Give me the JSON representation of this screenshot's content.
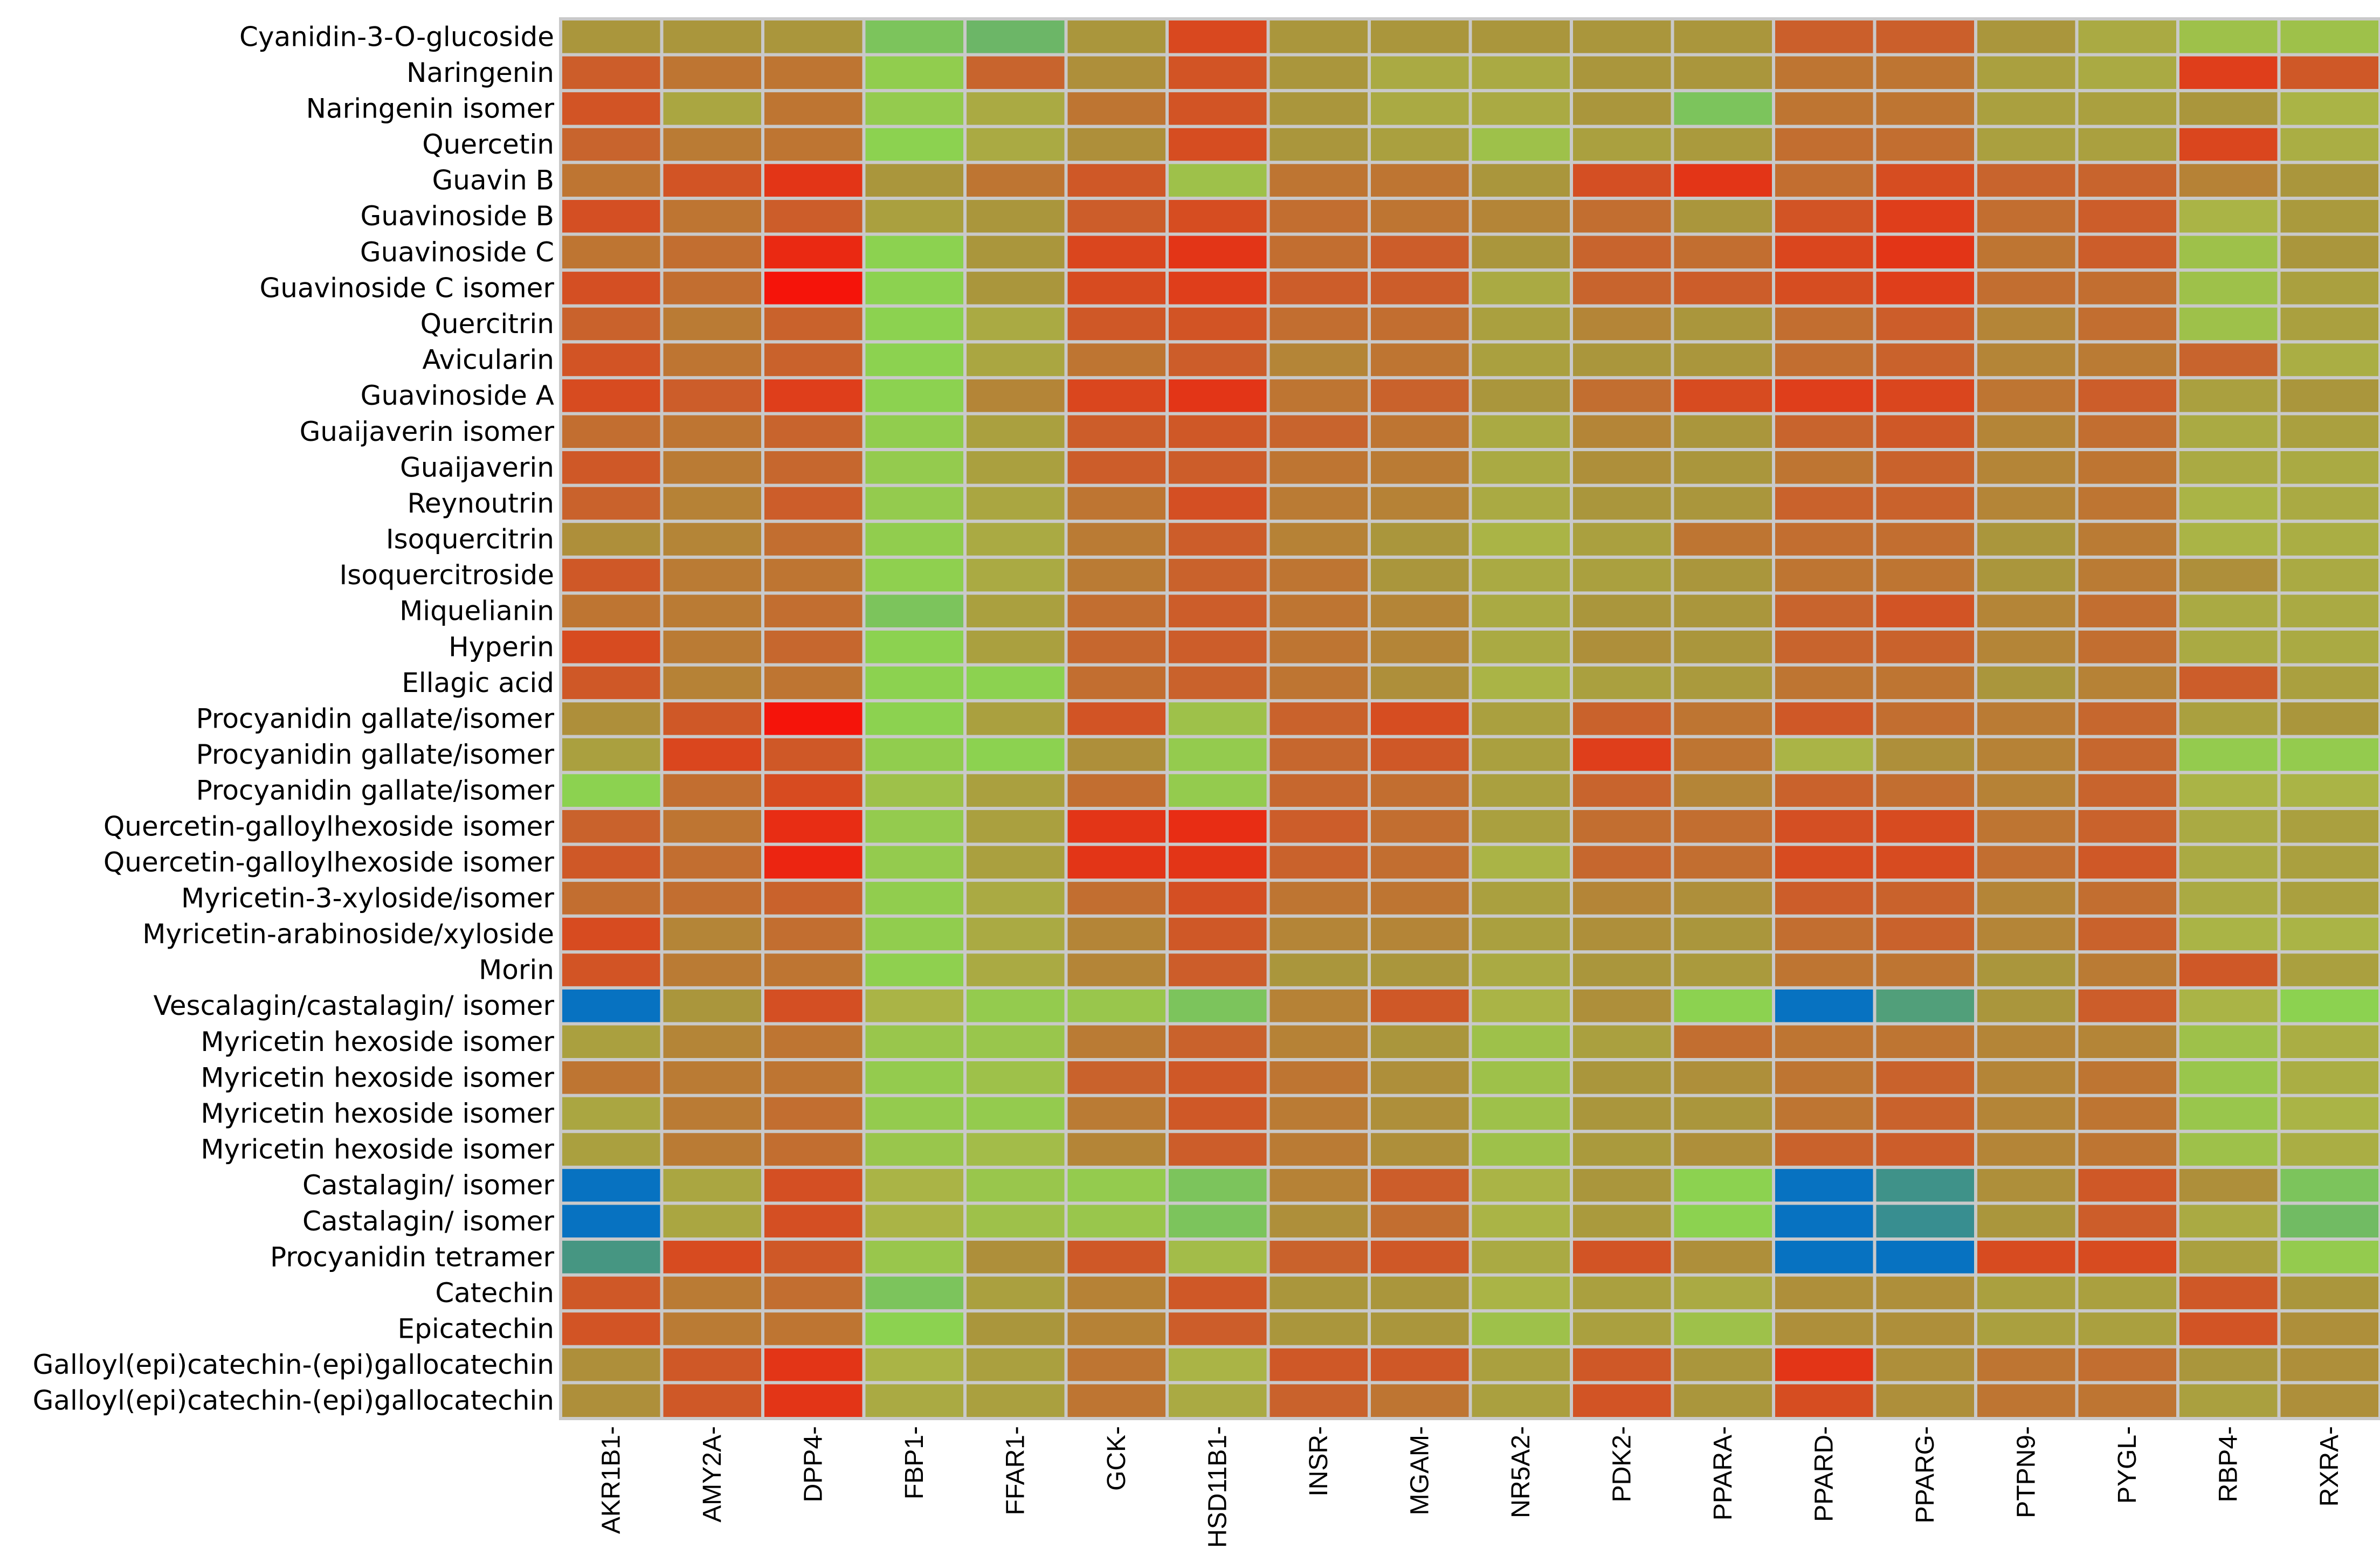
{
  "chart_data": {
    "type": "heatmap",
    "title": "",
    "xlabel": "",
    "ylabel": "",
    "columns": [
      "AKR1B1-",
      "AMY2A-",
      "DPP4-",
      "FBP1-",
      "FFAR1-",
      "GCK-",
      "HSD11B1-",
      "INSR-",
      "MGAM-",
      "NR5A2-",
      "PDK2-",
      "PPARA-",
      "PPARD-",
      "PPARG-",
      "PTPN9-",
      "PYGL-",
      "RBP4-",
      "RXRA-"
    ],
    "rows": [
      "Cyanidin-3-O-glucoside",
      "Naringenin",
      "Naringenin isomer",
      "Quercetin",
      "Guavin B",
      "Guavinoside B",
      "Guavinoside C",
      "Guavinoside C isomer",
      "Quercitrin",
      "Avicularin",
      "Guavinoside A",
      "Guaijaverin isomer",
      "Guaijaverin",
      "Reynoutrin",
      "Isoquercitrin",
      "Isoquercitroside",
      "Miquelianin",
      "Hyperin",
      "Ellagic acid",
      "Procyanidin gallate/isomer",
      "Procyanidin gallate/isomer",
      "Procyanidin gallate/isomer",
      "Quercetin-galloylhexoside isomer ",
      "Quercetin-galloylhexoside isomer ",
      "Myricetin-3-xyloside/isomer",
      "Myricetin-arabinoside/xyloside",
      "Morin",
      "Vescalagin/castalagin/ isomer",
      "Myricetin hexoside isomer",
      "Myricetin hexoside isomer ",
      "Myricetin hexoside isomer",
      "Myricetin hexoside isomer",
      "Castalagin/ isomer",
      "Castalagin/ isomer",
      "Procyanidin tetramer",
      "Catechin",
      "Epicatechin",
      "Galloyl(epi)catechin-(epi)gallocatechin",
      "Galloyl(epi)catechin-(epi)gallocatechin"
    ],
    "value_scale": "0 = blue (lowest), 0.33 = green, 0.6 = olive, 1 = red (highest)",
    "values": [
      [
        0.6,
        0.6,
        0.6,
        0.3,
        0.27,
        0.6,
        0.87,
        0.6,
        0.6,
        0.6,
        0.6,
        0.6,
        0.77,
        0.77,
        0.6,
        0.5,
        0.4,
        0.4
      ],
      [
        0.78,
        0.7,
        0.7,
        0.35,
        0.75,
        0.62,
        0.82,
        0.6,
        0.5,
        0.5,
        0.6,
        0.6,
        0.7,
        0.7,
        0.55,
        0.5,
        0.9,
        0.8
      ],
      [
        0.82,
        0.52,
        0.7,
        0.36,
        0.5,
        0.7,
        0.82,
        0.6,
        0.5,
        0.5,
        0.6,
        0.3,
        0.7,
        0.7,
        0.55,
        0.55,
        0.6,
        0.45
      ],
      [
        0.75,
        0.68,
        0.7,
        0.33,
        0.5,
        0.62,
        0.85,
        0.6,
        0.55,
        0.4,
        0.55,
        0.58,
        0.72,
        0.72,
        0.55,
        0.55,
        0.88,
        0.48
      ],
      [
        0.7,
        0.82,
        0.92,
        0.6,
        0.7,
        0.8,
        0.4,
        0.7,
        0.7,
        0.6,
        0.84,
        0.92,
        0.72,
        0.85,
        0.75,
        0.75,
        0.66,
        0.6
      ],
      [
        0.84,
        0.7,
        0.78,
        0.55,
        0.6,
        0.78,
        0.85,
        0.72,
        0.7,
        0.65,
        0.72,
        0.6,
        0.82,
        0.9,
        0.72,
        0.78,
        0.45,
        0.58
      ],
      [
        0.7,
        0.72,
        0.95,
        0.33,
        0.6,
        0.88,
        0.92,
        0.72,
        0.78,
        0.6,
        0.75,
        0.72,
        0.88,
        0.92,
        0.7,
        0.78,
        0.4,
        0.6
      ],
      [
        0.84,
        0.72,
        1.0,
        0.33,
        0.6,
        0.86,
        0.9,
        0.78,
        0.78,
        0.5,
        0.75,
        0.78,
        0.85,
        0.9,
        0.72,
        0.72,
        0.4,
        0.55
      ],
      [
        0.76,
        0.68,
        0.76,
        0.33,
        0.5,
        0.8,
        0.82,
        0.72,
        0.72,
        0.55,
        0.65,
        0.6,
        0.72,
        0.78,
        0.65,
        0.72,
        0.4,
        0.55
      ],
      [
        0.82,
        0.7,
        0.76,
        0.33,
        0.52,
        0.7,
        0.78,
        0.65,
        0.7,
        0.55,
        0.6,
        0.6,
        0.72,
        0.76,
        0.65,
        0.68,
        0.75,
        0.48
      ],
      [
        0.86,
        0.78,
        0.9,
        0.33,
        0.65,
        0.88,
        0.92,
        0.7,
        0.76,
        0.6,
        0.72,
        0.86,
        0.9,
        0.88,
        0.7,
        0.78,
        0.55,
        0.6
      ],
      [
        0.72,
        0.7,
        0.75,
        0.35,
        0.55,
        0.78,
        0.8,
        0.75,
        0.7,
        0.5,
        0.65,
        0.6,
        0.75,
        0.8,
        0.65,
        0.72,
        0.5,
        0.55
      ],
      [
        0.8,
        0.68,
        0.74,
        0.36,
        0.55,
        0.78,
        0.78,
        0.7,
        0.68,
        0.5,
        0.62,
        0.6,
        0.7,
        0.76,
        0.65,
        0.7,
        0.5,
        0.5
      ],
      [
        0.76,
        0.66,
        0.78,
        0.36,
        0.52,
        0.7,
        0.84,
        0.68,
        0.66,
        0.5,
        0.6,
        0.6,
        0.76,
        0.76,
        0.65,
        0.7,
        0.45,
        0.5
      ],
      [
        0.62,
        0.65,
        0.72,
        0.35,
        0.5,
        0.68,
        0.78,
        0.66,
        0.6,
        0.45,
        0.55,
        0.7,
        0.72,
        0.72,
        0.6,
        0.68,
        0.45,
        0.48
      ],
      [
        0.8,
        0.68,
        0.7,
        0.34,
        0.5,
        0.68,
        0.76,
        0.7,
        0.6,
        0.5,
        0.55,
        0.6,
        0.7,
        0.7,
        0.6,
        0.68,
        0.62,
        0.5
      ],
      [
        0.7,
        0.68,
        0.72,
        0.3,
        0.55,
        0.72,
        0.78,
        0.7,
        0.65,
        0.5,
        0.6,
        0.6,
        0.75,
        0.82,
        0.65,
        0.72,
        0.5,
        0.5
      ],
      [
        0.86,
        0.68,
        0.74,
        0.33,
        0.55,
        0.74,
        0.78,
        0.7,
        0.65,
        0.5,
        0.62,
        0.6,
        0.75,
        0.76,
        0.65,
        0.72,
        0.5,
        0.5
      ],
      [
        0.8,
        0.66,
        0.7,
        0.33,
        0.33,
        0.72,
        0.76,
        0.7,
        0.62,
        0.45,
        0.55,
        0.58,
        0.7,
        0.7,
        0.6,
        0.66,
        0.78,
        0.55
      ],
      [
        0.62,
        0.8,
        1.0,
        0.33,
        0.55,
        0.82,
        0.4,
        0.76,
        0.85,
        0.55,
        0.76,
        0.7,
        0.8,
        0.72,
        0.68,
        0.74,
        0.55,
        0.6
      ],
      [
        0.55,
        0.88,
        0.8,
        0.35,
        0.33,
        0.62,
        0.36,
        0.74,
        0.8,
        0.55,
        0.9,
        0.7,
        0.45,
        0.62,
        0.66,
        0.74,
        0.36,
        0.36
      ],
      [
        0.33,
        0.72,
        0.86,
        0.4,
        0.55,
        0.72,
        0.36,
        0.74,
        0.72,
        0.55,
        0.75,
        0.65,
        0.76,
        0.72,
        0.66,
        0.75,
        0.45,
        0.45
      ],
      [
        0.76,
        0.7,
        0.94,
        0.36,
        0.55,
        0.92,
        0.94,
        0.78,
        0.72,
        0.55,
        0.72,
        0.72,
        0.84,
        0.86,
        0.7,
        0.76,
        0.5,
        0.55
      ],
      [
        0.8,
        0.72,
        0.96,
        0.36,
        0.55,
        0.92,
        0.92,
        0.76,
        0.72,
        0.45,
        0.74,
        0.72,
        0.86,
        0.86,
        0.72,
        0.8,
        0.5,
        0.55
      ],
      [
        0.72,
        0.72,
        0.76,
        0.35,
        0.5,
        0.72,
        0.84,
        0.7,
        0.7,
        0.55,
        0.65,
        0.62,
        0.78,
        0.76,
        0.65,
        0.72,
        0.5,
        0.55
      ],
      [
        0.86,
        0.65,
        0.72,
        0.35,
        0.5,
        0.65,
        0.8,
        0.65,
        0.65,
        0.55,
        0.62,
        0.6,
        0.72,
        0.76,
        0.65,
        0.76,
        0.45,
        0.45
      ],
      [
        0.82,
        0.68,
        0.7,
        0.34,
        0.5,
        0.65,
        0.78,
        0.6,
        0.6,
        0.5,
        0.6,
        0.58,
        0.7,
        0.7,
        0.6,
        0.68,
        0.8,
        0.55
      ],
      [
        0.02,
        0.6,
        0.84,
        0.45,
        0.36,
        0.38,
        0.3,
        0.66,
        0.8,
        0.45,
        0.62,
        0.33,
        0.02,
        0.22,
        0.6,
        0.78,
        0.45,
        0.33
      ],
      [
        0.55,
        0.65,
        0.7,
        0.38,
        0.38,
        0.68,
        0.76,
        0.66,
        0.6,
        0.4,
        0.55,
        0.72,
        0.7,
        0.7,
        0.65,
        0.65,
        0.4,
        0.48
      ],
      [
        0.7,
        0.68,
        0.7,
        0.36,
        0.4,
        0.76,
        0.8,
        0.7,
        0.62,
        0.4,
        0.6,
        0.62,
        0.7,
        0.76,
        0.65,
        0.7,
        0.38,
        0.48
      ],
      [
        0.52,
        0.68,
        0.72,
        0.36,
        0.36,
        0.68,
        0.8,
        0.68,
        0.62,
        0.4,
        0.6,
        0.6,
        0.7,
        0.76,
        0.65,
        0.7,
        0.38,
        0.45
      ],
      [
        0.55,
        0.68,
        0.72,
        0.38,
        0.42,
        0.65,
        0.78,
        0.68,
        0.62,
        0.4,
        0.58,
        0.62,
        0.76,
        0.78,
        0.65,
        0.7,
        0.4,
        0.48
      ],
      [
        0.02,
        0.52,
        0.84,
        0.45,
        0.38,
        0.36,
        0.3,
        0.66,
        0.78,
        0.45,
        0.6,
        0.33,
        0.02,
        0.18,
        0.62,
        0.8,
        0.62,
        0.3
      ],
      [
        0.02,
        0.52,
        0.84,
        0.45,
        0.4,
        0.38,
        0.3,
        0.62,
        0.72,
        0.45,
        0.58,
        0.33,
        0.02,
        0.16,
        0.6,
        0.78,
        0.5,
        0.28
      ],
      [
        0.2,
        0.86,
        0.8,
        0.38,
        0.62,
        0.8,
        0.42,
        0.76,
        0.8,
        0.5,
        0.82,
        0.62,
        0.02,
        0.02,
        0.86,
        0.86,
        0.55,
        0.36
      ],
      [
        0.8,
        0.68,
        0.72,
        0.3,
        0.55,
        0.66,
        0.8,
        0.6,
        0.6,
        0.45,
        0.55,
        0.5,
        0.62,
        0.62,
        0.55,
        0.55,
        0.8,
        0.6
      ],
      [
        0.82,
        0.68,
        0.7,
        0.33,
        0.6,
        0.66,
        0.78,
        0.6,
        0.6,
        0.4,
        0.55,
        0.4,
        0.62,
        0.62,
        0.55,
        0.55,
        0.82,
        0.62
      ],
      [
        0.62,
        0.8,
        0.92,
        0.45,
        0.55,
        0.7,
        0.45,
        0.8,
        0.8,
        0.55,
        0.8,
        0.6,
        0.92,
        0.62,
        0.7,
        0.72,
        0.6,
        0.62
      ],
      [
        0.62,
        0.8,
        0.92,
        0.5,
        0.55,
        0.7,
        0.5,
        0.76,
        0.7,
        0.55,
        0.82,
        0.6,
        0.85,
        0.62,
        0.7,
        0.7,
        0.55,
        0.62
      ]
    ]
  }
}
